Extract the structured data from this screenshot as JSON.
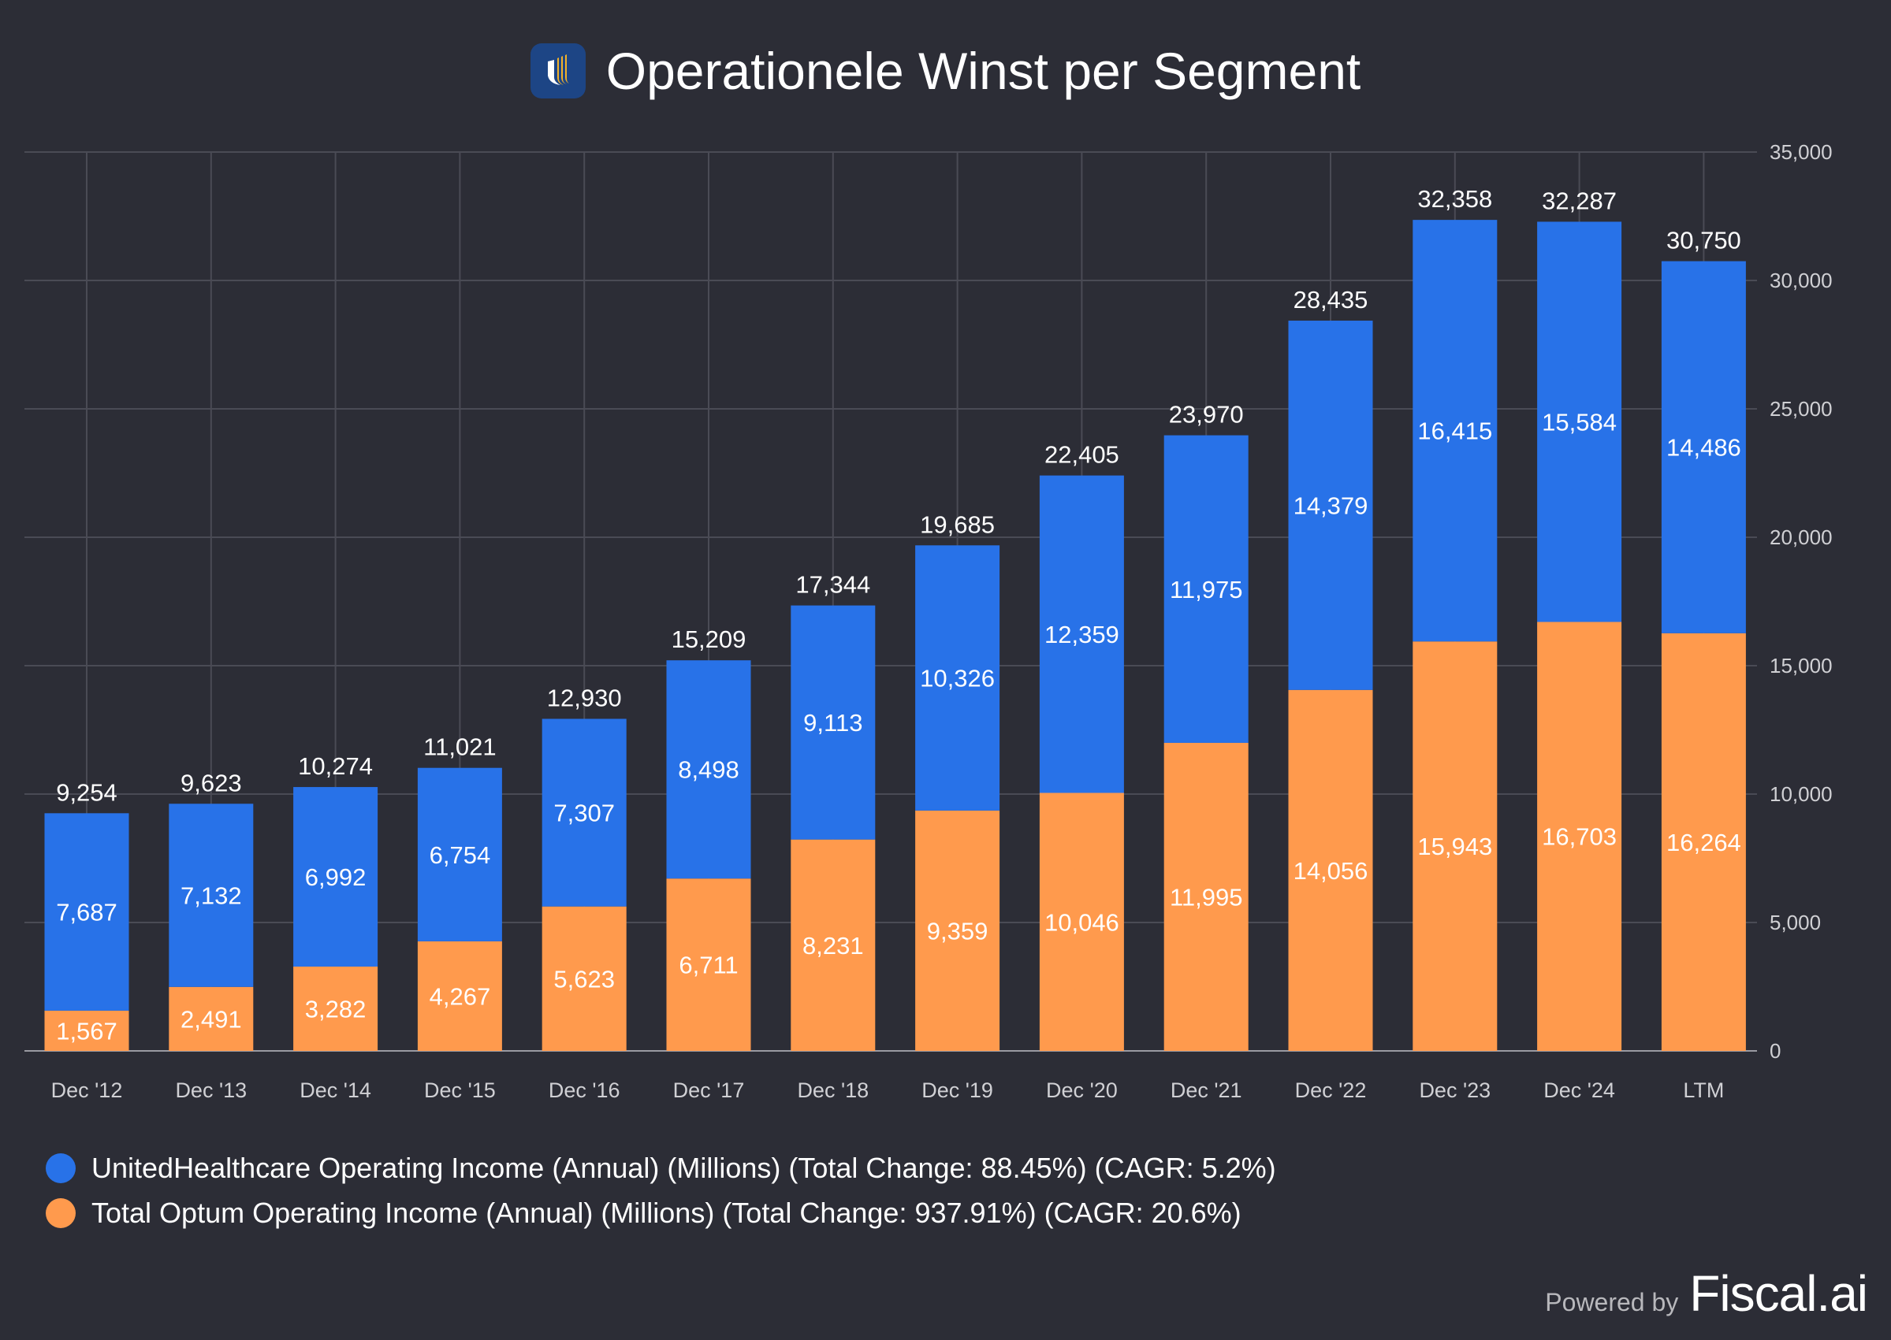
{
  "title": "Operationele Winst per Segment",
  "colors": {
    "background": "#2c2d36",
    "united": "#2872e8",
    "optum": "#ff9a4d",
    "grid": "#4a4b55"
  },
  "chart_data": {
    "type": "bar",
    "stacked": true,
    "title": "Operationele Winst per Segment",
    "categories": [
      "Dec '12",
      "Dec '13",
      "Dec '14",
      "Dec '15",
      "Dec '16",
      "Dec '17",
      "Dec '18",
      "Dec '19",
      "Dec '20",
      "Dec '21",
      "Dec '22",
      "Dec '23",
      "Dec '24",
      "LTM"
    ],
    "series": [
      {
        "name": "Total Optum Operating Income (Annual) (Millions) (Total Change: 937.91%) (CAGR: 20.6%)",
        "color": "#ff9a4d",
        "values": [
          1567,
          2491,
          3282,
          4267,
          5623,
          6711,
          8231,
          9359,
          10046,
          11995,
          14056,
          15943,
          16703,
          16264
        ]
      },
      {
        "name": "UnitedHealthcare Operating Income (Annual) (Millions) (Total Change: 88.45%) (CAGR: 5.2%)",
        "color": "#2872e8",
        "values": [
          7687,
          7132,
          6992,
          6754,
          7307,
          8498,
          9113,
          10326,
          12359,
          11975,
          14379,
          16415,
          15584,
          14486
        ]
      }
    ],
    "totals": [
      9254,
      9623,
      10274,
      11021,
      12930,
      15209,
      17344,
      19685,
      22405,
      23970,
      28435,
      32358,
      32287,
      30750
    ],
    "ylim": [
      0,
      35000
    ],
    "yticks": [
      0,
      5000,
      10000,
      15000,
      20000,
      25000,
      30000,
      35000
    ],
    "y_axis_side": "right",
    "grid": true,
    "legend_placement": "bottom-left"
  },
  "legend": [
    {
      "label": "UnitedHealthcare Operating Income (Annual) (Millions) (Total Change: 88.45%) (CAGR: 5.2%)"
    },
    {
      "label": "Total Optum Operating Income (Annual) (Millions) (Total Change: 937.91%) (CAGR: 20.6%)"
    }
  ],
  "footer": {
    "powered_by": "Powered by",
    "brand": "Fiscal.ai"
  }
}
